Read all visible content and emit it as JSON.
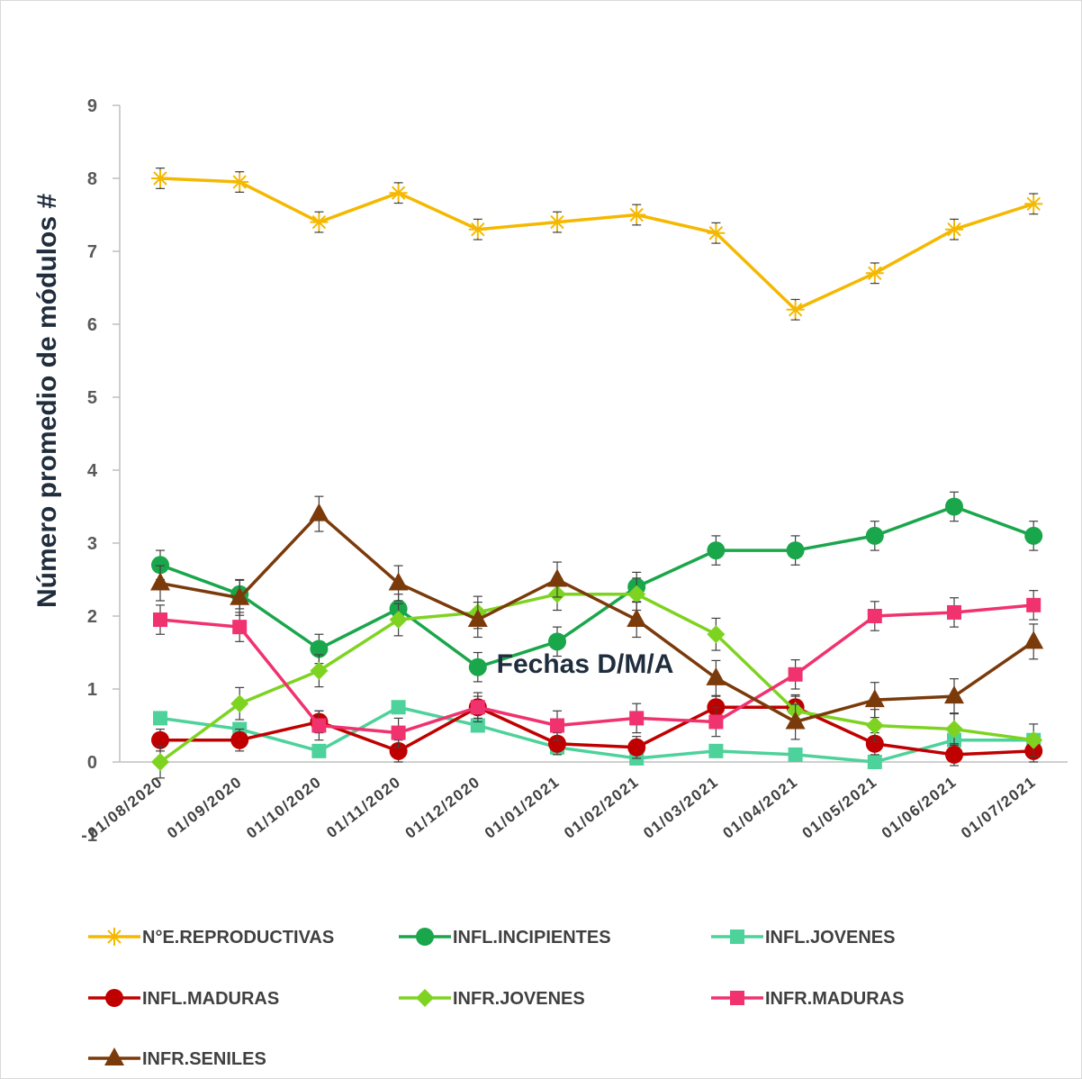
{
  "chart_data": {
    "type": "line",
    "xlabel": "Fechas D/M/A",
    "ylabel": "Número promedio de módulos #",
    "ylim": [
      -1,
      9
    ],
    "yticks": [
      "-1",
      "0",
      "1",
      "2",
      "3",
      "4",
      "5",
      "6",
      "7",
      "8",
      "9"
    ],
    "grid": false,
    "legend_position": "bottom",
    "categories": [
      "01/08/2020",
      "01/09/2020",
      "01/10/2020",
      "01/11/2020",
      "01/12/2020",
      "01/01/2021",
      "01/02/2021",
      "01/03/2021",
      "01/04/2021",
      "01/05/2021",
      "01/06/2021",
      "01/07/2021"
    ],
    "series": [
      {
        "name": "N°E.REPRODUCTIVAS",
        "color": "#f5b800",
        "marker": "star",
        "values": [
          8.0,
          7.95,
          7.4,
          7.8,
          7.3,
          7.4,
          7.5,
          7.25,
          6.2,
          6.7,
          7.3,
          7.65
        ],
        "errors": [
          0.14,
          0.14,
          0.14,
          0.14,
          0.14,
          0.14,
          0.14,
          0.14,
          0.14,
          0.14,
          0.14,
          0.14
        ]
      },
      {
        "name": "INFL.INCIPIENTES",
        "color": "#1aa64b",
        "marker": "circle",
        "values": [
          2.7,
          2.3,
          1.55,
          2.1,
          1.3,
          1.65,
          2.4,
          2.9,
          2.9,
          3.1,
          3.5,
          3.1
        ],
        "errors": [
          0.2,
          0.2,
          0.2,
          0.2,
          0.2,
          0.2,
          0.2,
          0.2,
          0.2,
          0.2,
          0.2,
          0.2
        ]
      },
      {
        "name": "INFL.JOVENES",
        "color": "#4cd29a",
        "marker": "square",
        "values": [
          0.6,
          0.45,
          0.15,
          0.75,
          0.5,
          0.2,
          0.05,
          0.15,
          0.1,
          0.0,
          0.3,
          0.3
        ],
        "errors": [
          0.0,
          0.0,
          0.0,
          0.0,
          0.0,
          0.0,
          0.0,
          0.0,
          0.0,
          0.0,
          0.0,
          0.0
        ]
      },
      {
        "name": "INFL.MADURAS",
        "color": "#c00000",
        "marker": "circle",
        "values": [
          0.3,
          0.3,
          0.55,
          0.15,
          0.75,
          0.25,
          0.2,
          0.75,
          0.75,
          0.25,
          0.1,
          0.15
        ],
        "errors": [
          0.15,
          0.15,
          0.15,
          0.15,
          0.15,
          0.15,
          0.15,
          0.15,
          0.15,
          0.15,
          0.15,
          0.15
        ]
      },
      {
        "name": "INFR.JOVENES",
        "color": "#7ed321",
        "marker": "diamond",
        "values": [
          0.0,
          0.8,
          1.25,
          1.95,
          2.05,
          2.3,
          2.3,
          1.75,
          0.7,
          0.5,
          0.45,
          0.3
        ],
        "errors": [
          0.22,
          0.22,
          0.22,
          0.22,
          0.22,
          0.22,
          0.22,
          0.22,
          0.22,
          0.22,
          0.22,
          0.22
        ]
      },
      {
        "name": "INFR.MADURAS",
        "color": "#f0326e",
        "marker": "square",
        "values": [
          1.95,
          1.85,
          0.5,
          0.4,
          0.75,
          0.5,
          0.6,
          0.55,
          1.2,
          2.0,
          2.05,
          2.15
        ],
        "errors": [
          0.2,
          0.2,
          0.2,
          0.2,
          0.2,
          0.2,
          0.2,
          0.2,
          0.2,
          0.2,
          0.2,
          0.2
        ]
      },
      {
        "name": "INFR.SENILES",
        "color": "#7b3a0a",
        "marker": "triangle",
        "values": [
          2.45,
          2.25,
          3.4,
          2.45,
          1.95,
          2.5,
          1.95,
          1.15,
          0.55,
          0.85,
          0.9,
          1.65
        ],
        "errors": [
          0.24,
          0.24,
          0.24,
          0.24,
          0.24,
          0.24,
          0.24,
          0.24,
          0.24,
          0.24,
          0.24,
          0.24
        ]
      }
    ]
  }
}
